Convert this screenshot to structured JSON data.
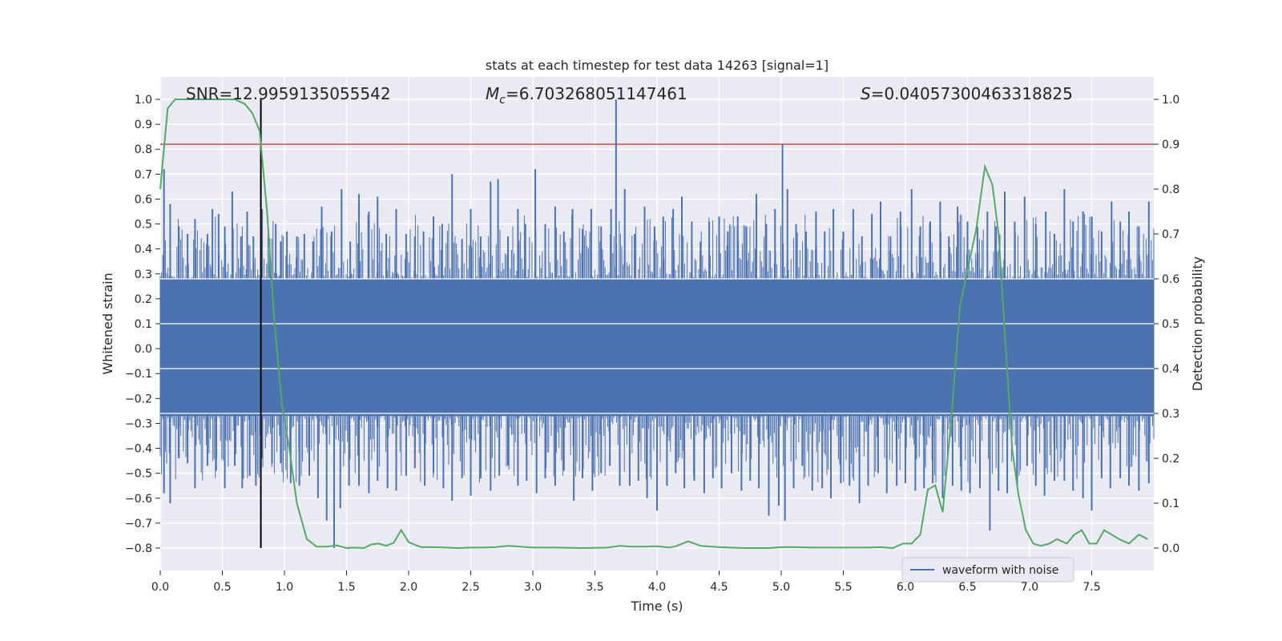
{
  "chart_data": {
    "type": "line",
    "title": "stats at each timestep for test data 14263 [signal=1]",
    "xlabel": "Time (s)",
    "ylabel_left": "Whitened strain",
    "ylabel_right": "Detection probability",
    "xlim": [
      0.0,
      8.0
    ],
    "ylim_left": [
      -0.89,
      1.09
    ],
    "ylim_right": [
      -0.05,
      1.05
    ],
    "x_ticks": [
      "0.0",
      "0.5",
      "1.0",
      "1.5",
      "2.0",
      "2.5",
      "3.0",
      "3.5",
      "4.0",
      "4.5",
      "5.0",
      "5.5",
      "6.0",
      "6.5",
      "7.0",
      "7.5"
    ],
    "y_left_ticks": [
      "1.0",
      "0.9",
      "0.8",
      "0.7",
      "0.6",
      "0.5",
      "0.4",
      "0.3",
      "0.2",
      "0.1",
      "0.0",
      "−0.1",
      "−0.2",
      "−0.3",
      "−0.4",
      "−0.5",
      "−0.6",
      "−0.7",
      "−0.8"
    ],
    "y_right_ticks": [
      "1.0",
      "0.9",
      "0.8",
      "0.7",
      "0.6",
      "0.5",
      "0.4",
      "0.3",
      "0.2",
      "0.1",
      "0.0"
    ],
    "grid": true,
    "legend_position": "lower-right",
    "annotations": {
      "snr": "SNR=12.9959135055542",
      "mc_symbol": "M",
      "mc_sub": "c",
      "mc_value": "=6.703268051147461",
      "s_symbol": "S",
      "s_value": "=0.04057300463318825"
    },
    "threshold_right": 0.9,
    "vline_x": 0.81,
    "series": [
      {
        "name": "waveform with noise",
        "axis": "left",
        "color": "#4c72b0",
        "band_pos": 0.28,
        "band_neg": -0.27,
        "peaks": [
          [
            0.03,
            0.72
          ],
          [
            0.08,
            0.58
          ],
          [
            0.15,
            0.49
          ],
          [
            0.22,
            0.46
          ],
          [
            0.28,
            0.52
          ],
          [
            0.38,
            0.46
          ],
          [
            0.42,
            0.56
          ],
          [
            0.47,
            0.54
          ],
          [
            0.52,
            0.49
          ],
          [
            0.58,
            0.63
          ],
          [
            0.65,
            0.45
          ],
          [
            0.7,
            0.55
          ],
          [
            0.75,
            0.45
          ],
          [
            0.82,
            0.56
          ],
          [
            0.88,
            0.44
          ],
          [
            0.93,
            0.5
          ],
          [
            0.97,
            0.43
          ],
          [
            1.02,
            0.47
          ],
          [
            1.1,
            0.45
          ],
          [
            1.16,
            0.46
          ],
          [
            1.23,
            0.43
          ],
          [
            1.3,
            0.57
          ],
          [
            1.38,
            0.47
          ],
          [
            1.46,
            0.64
          ],
          [
            1.53,
            0.43
          ],
          [
            1.6,
            0.62
          ],
          [
            1.68,
            0.55
          ],
          [
            1.75,
            0.61
          ],
          [
            1.82,
            0.46
          ],
          [
            1.9,
            0.56
          ],
          [
            1.98,
            0.46
          ],
          [
            2.05,
            0.45
          ],
          [
            2.12,
            0.47
          ],
          [
            2.2,
            0.53
          ],
          [
            2.27,
            0.5
          ],
          [
            2.35,
            0.7
          ],
          [
            2.43,
            0.44
          ],
          [
            2.5,
            0.56
          ],
          [
            2.58,
            0.45
          ],
          [
            2.66,
            0.67
          ],
          [
            2.72,
            0.68
          ],
          [
            2.8,
            0.45
          ],
          [
            2.88,
            0.56
          ],
          [
            2.94,
            0.5
          ],
          [
            3.02,
            0.72
          ],
          [
            3.1,
            0.5
          ],
          [
            3.18,
            0.57
          ],
          [
            3.25,
            0.47
          ],
          [
            3.32,
            0.56
          ],
          [
            3.4,
            0.48
          ],
          [
            3.47,
            0.56
          ],
          [
            3.55,
            0.49
          ],
          [
            3.63,
            0.56
          ],
          [
            3.67,
            1.0
          ],
          [
            3.74,
            0.64
          ],
          [
            3.82,
            0.46
          ],
          [
            3.9,
            0.57
          ],
          [
            3.98,
            0.49
          ],
          [
            4.05,
            0.53
          ],
          [
            4.13,
            0.56
          ],
          [
            4.2,
            0.61
          ],
          [
            4.28,
            0.51
          ],
          [
            4.35,
            0.43
          ],
          [
            4.42,
            0.51
          ],
          [
            4.5,
            0.53
          ],
          [
            4.57,
            0.47
          ],
          [
            4.65,
            0.53
          ],
          [
            4.72,
            0.49
          ],
          [
            4.8,
            0.62
          ],
          [
            4.88,
            0.5
          ],
          [
            4.95,
            0.56
          ],
          [
            5.01,
            0.82
          ],
          [
            5.05,
            0.64
          ],
          [
            5.12,
            0.5
          ],
          [
            5.2,
            0.47
          ],
          [
            5.28,
            0.55
          ],
          [
            5.35,
            0.47
          ],
          [
            5.42,
            0.56
          ],
          [
            5.5,
            0.47
          ],
          [
            5.58,
            0.56
          ],
          [
            5.65,
            0.45
          ],
          [
            5.73,
            0.54
          ],
          [
            5.8,
            0.59
          ],
          [
            5.88,
            0.45
          ],
          [
            5.96,
            0.55
          ],
          [
            6.05,
            0.64
          ],
          [
            6.12,
            0.49
          ],
          [
            6.2,
            0.51
          ],
          [
            6.28,
            0.59
          ],
          [
            6.35,
            0.45
          ],
          [
            6.42,
            0.57
          ],
          [
            6.5,
            0.51
          ],
          [
            6.58,
            0.49
          ],
          [
            6.66,
            0.55
          ],
          [
            6.73,
            0.49
          ],
          [
            6.8,
            0.63
          ],
          [
            6.88,
            0.51
          ],
          [
            6.96,
            0.61
          ],
          [
            7.05,
            0.5
          ],
          [
            7.13,
            0.55
          ],
          [
            7.2,
            0.46
          ],
          [
            7.28,
            0.64
          ],
          [
            7.35,
            0.51
          ],
          [
            7.43,
            0.55
          ],
          [
            7.5,
            0.53
          ],
          [
            7.58,
            0.47
          ],
          [
            7.66,
            0.59
          ],
          [
            7.73,
            0.51
          ],
          [
            7.8,
            0.55
          ],
          [
            7.88,
            0.49
          ],
          [
            7.96,
            0.59
          ]
        ],
        "troughs": [
          [
            0.03,
            -0.58
          ],
          [
            0.08,
            -0.62
          ],
          [
            0.15,
            -0.44
          ],
          [
            0.22,
            -0.46
          ],
          [
            0.28,
            -0.56
          ],
          [
            0.38,
            -0.47
          ],
          [
            0.45,
            -0.49
          ],
          [
            0.52,
            -0.56
          ],
          [
            0.6,
            -0.47
          ],
          [
            0.66,
            -0.56
          ],
          [
            0.72,
            -0.51
          ],
          [
            0.77,
            -0.55
          ],
          [
            0.82,
            -0.44
          ],
          [
            0.9,
            -0.46
          ],
          [
            0.97,
            -0.46
          ],
          [
            1.05,
            -0.54
          ],
          [
            1.12,
            -0.55
          ],
          [
            1.2,
            -0.51
          ],
          [
            1.27,
            -0.6
          ],
          [
            1.34,
            -0.69
          ],
          [
            1.4,
            -0.8
          ],
          [
            1.45,
            -0.64
          ],
          [
            1.52,
            -0.55
          ],
          [
            1.6,
            -0.55
          ],
          [
            1.68,
            -0.58
          ],
          [
            1.75,
            -0.53
          ],
          [
            1.83,
            -0.56
          ],
          [
            1.9,
            -0.57
          ],
          [
            1.98,
            -0.51
          ],
          [
            2.05,
            -0.48
          ],
          [
            2.13,
            -0.55
          ],
          [
            2.2,
            -0.5
          ],
          [
            2.28,
            -0.56
          ],
          [
            2.35,
            -0.61
          ],
          [
            2.43,
            -0.52
          ],
          [
            2.5,
            -0.59
          ],
          [
            2.58,
            -0.52
          ],
          [
            2.66,
            -0.57
          ],
          [
            2.73,
            -0.51
          ],
          [
            2.8,
            -0.47
          ],
          [
            2.88,
            -0.55
          ],
          [
            2.95,
            -0.53
          ],
          [
            3.03,
            -0.58
          ],
          [
            3.1,
            -0.52
          ],
          [
            3.18,
            -0.55
          ],
          [
            3.25,
            -0.49
          ],
          [
            3.33,
            -0.61
          ],
          [
            3.4,
            -0.52
          ],
          [
            3.48,
            -0.57
          ],
          [
            3.55,
            -0.5
          ],
          [
            3.62,
            -0.47
          ],
          [
            3.7,
            -0.55
          ],
          [
            3.78,
            -0.55
          ],
          [
            3.85,
            -0.53
          ],
          [
            3.92,
            -0.6
          ],
          [
            4.0,
            -0.65
          ],
          [
            4.08,
            -0.55
          ],
          [
            4.15,
            -0.5
          ],
          [
            4.22,
            -0.56
          ],
          [
            4.3,
            -0.53
          ],
          [
            4.38,
            -0.58
          ],
          [
            4.45,
            -0.52
          ],
          [
            4.52,
            -0.56
          ],
          [
            4.6,
            -0.5
          ],
          [
            4.68,
            -0.57
          ],
          [
            4.75,
            -0.53
          ],
          [
            4.82,
            -0.56
          ],
          [
            4.9,
            -0.67
          ],
          [
            4.98,
            -0.63
          ],
          [
            5.03,
            -0.69
          ],
          [
            5.1,
            -0.56
          ],
          [
            5.17,
            -0.47
          ],
          [
            5.25,
            -0.57
          ],
          [
            5.33,
            -0.56
          ],
          [
            5.4,
            -0.6
          ],
          [
            5.48,
            -0.54
          ],
          [
            5.55,
            -0.55
          ],
          [
            5.63,
            -0.62
          ],
          [
            5.7,
            -0.55
          ],
          [
            5.78,
            -0.5
          ],
          [
            5.85,
            -0.58
          ],
          [
            5.93,
            -0.55
          ],
          [
            6.0,
            -0.54
          ],
          [
            6.08,
            -0.57
          ],
          [
            6.15,
            -0.56
          ],
          [
            6.22,
            -0.54
          ],
          [
            6.3,
            -0.6
          ],
          [
            6.38,
            -0.55
          ],
          [
            6.45,
            -0.57
          ],
          [
            6.52,
            -0.58
          ],
          [
            6.6,
            -0.56
          ],
          [
            6.68,
            -0.73
          ],
          [
            6.75,
            -0.57
          ],
          [
            6.82,
            -0.58
          ],
          [
            6.9,
            -0.55
          ],
          [
            6.98,
            -0.47
          ],
          [
            7.05,
            -0.55
          ],
          [
            7.12,
            -0.59
          ],
          [
            7.2,
            -0.53
          ],
          [
            7.28,
            -0.53
          ],
          [
            7.35,
            -0.57
          ],
          [
            7.43,
            -0.6
          ],
          [
            7.5,
            -0.65
          ],
          [
            7.58,
            -0.52
          ],
          [
            7.65,
            -0.56
          ],
          [
            7.73,
            -0.52
          ],
          [
            7.8,
            -0.55
          ],
          [
            7.88,
            -0.57
          ],
          [
            7.96,
            -0.54
          ]
        ]
      },
      {
        "axis": "right",
        "color": "#55a868",
        "x": [
          0.0,
          0.06,
          0.12,
          0.2,
          0.3,
          0.4,
          0.5,
          0.6,
          0.68,
          0.74,
          0.8,
          0.86,
          0.92,
          0.98,
          1.04,
          1.1,
          1.18,
          1.26,
          1.34,
          1.42,
          1.5,
          1.56,
          1.64,
          1.7,
          1.76,
          1.82,
          1.88,
          1.94,
          2.0,
          2.1,
          2.2,
          2.3,
          2.4,
          2.5,
          2.6,
          2.7,
          2.8,
          2.9,
          3.0,
          3.2,
          3.4,
          3.6,
          3.7,
          3.8,
          3.9,
          4.0,
          4.1,
          4.15,
          4.25,
          4.35,
          4.5,
          4.7,
          4.9,
          5.0,
          5.1,
          5.3,
          5.5,
          5.7,
          5.8,
          5.9,
          5.98,
          6.05,
          6.12,
          6.18,
          6.24,
          6.3,
          6.37,
          6.44,
          6.5,
          6.57,
          6.64,
          6.7,
          6.75,
          6.8,
          6.86,
          6.91,
          6.97,
          7.03,
          7.09,
          7.16,
          7.22,
          7.3,
          7.36,
          7.42,
          7.48,
          7.54,
          7.6,
          7.66,
          7.72,
          7.8,
          7.88,
          7.95
        ],
        "y": [
          0.8,
          0.98,
          1.0,
          1.0,
          1.0,
          1.0,
          1.0,
          1.0,
          0.99,
          0.97,
          0.93,
          0.75,
          0.5,
          0.32,
          0.22,
          0.1,
          0.02,
          0.003,
          0.003,
          0.006,
          0.0,
          0.001,
          0.0,
          0.008,
          0.01,
          0.005,
          0.012,
          0.04,
          0.013,
          0.002,
          0.002,
          0.001,
          0.0,
          0.001,
          0.001,
          0.002,
          0.005,
          0.003,
          0.001,
          0.001,
          0.0,
          0.001,
          0.005,
          0.003,
          0.003,
          0.004,
          0.001,
          0.004,
          0.015,
          0.005,
          0.002,
          0.0,
          0.0,
          0.002,
          0.002,
          0.001,
          0.001,
          0.001,
          0.002,
          0.0,
          0.01,
          0.01,
          0.03,
          0.13,
          0.14,
          0.08,
          0.29,
          0.54,
          0.62,
          0.71,
          0.85,
          0.81,
          0.7,
          0.48,
          0.22,
          0.12,
          0.04,
          0.01,
          0.005,
          0.01,
          0.02,
          0.01,
          0.03,
          0.04,
          0.01,
          0.01,
          0.04,
          0.03,
          0.02,
          0.01,
          0.03,
          0.02
        ]
      }
    ]
  }
}
